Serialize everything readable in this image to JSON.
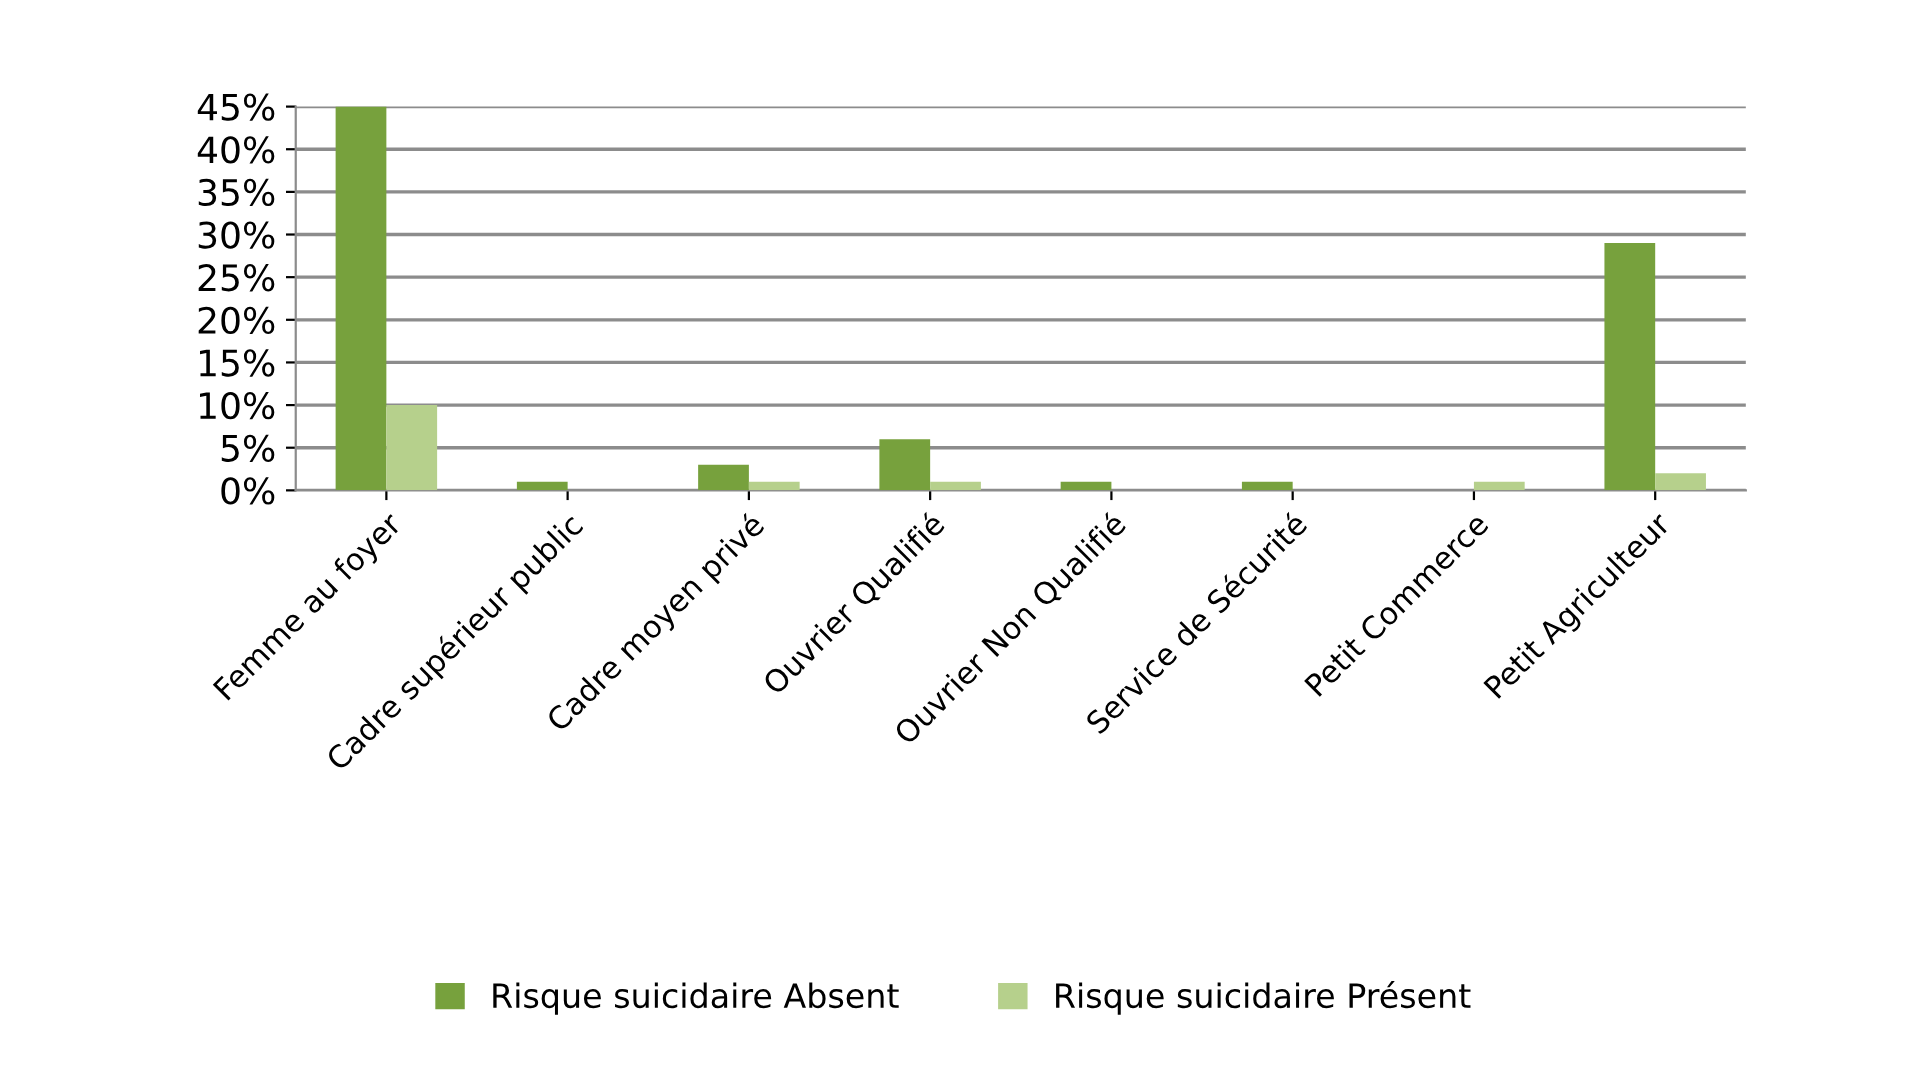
{
  "chart_data": {
    "type": "bar",
    "categories": [
      "Femme au foyer",
      "Cadre supérieur public",
      "Cadre moyen privé",
      "Ouvrier Qualifié",
      "Ouvrier Non Qualifié",
      "Service de Sécurité",
      "Petit Commerce",
      "Petit Agriculteur"
    ],
    "series": [
      {
        "name": "Risque suicidaire Absent",
        "color": "#77a13d",
        "values": [
          45,
          1,
          3,
          6,
          1,
          1,
          0,
          29
        ]
      },
      {
        "name": "Risque suicidaire Présent",
        "color": "#b6d08c",
        "values": [
          10,
          0,
          1,
          1,
          0,
          0,
          1,
          2
        ]
      }
    ],
    "ylim": [
      0,
      45
    ],
    "yticks": [
      {
        "value": 0,
        "label": "0%"
      },
      {
        "value": 5,
        "label": "5%"
      },
      {
        "value": 10,
        "label": "10%"
      },
      {
        "value": 15,
        "label": "15%"
      },
      {
        "value": 20,
        "label": "20%"
      },
      {
        "value": 25,
        "label": "25%"
      },
      {
        "value": 30,
        "label": "30%"
      },
      {
        "value": 35,
        "label": "35%"
      },
      {
        "value": 40,
        "label": "40%"
      },
      {
        "value": 45,
        "label": "45%"
      }
    ],
    "grid": "y",
    "legend": "bottom"
  }
}
